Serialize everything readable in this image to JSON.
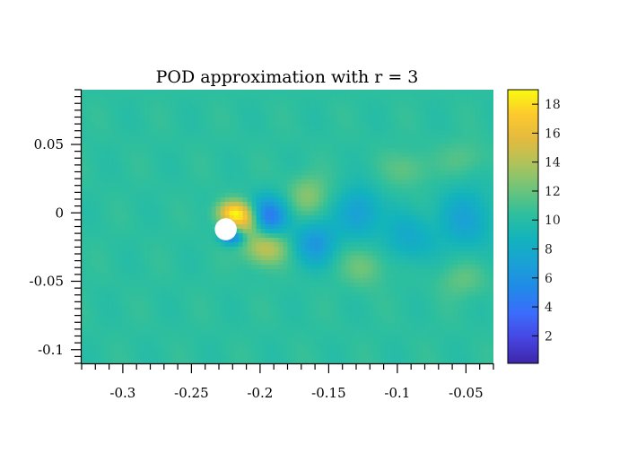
{
  "chart_data": {
    "type": "heatmap",
    "title": "POD approximation with r = 3",
    "xlabel": "",
    "ylabel": "",
    "xlim": [
      -0.33,
      -0.03
    ],
    "ylim": [
      -0.11,
      0.09
    ],
    "x_ticks": [
      -0.3,
      -0.25,
      -0.2,
      -0.15,
      -0.1,
      -0.05
    ],
    "x_tick_labels": [
      "-0.3",
      "-0.25",
      "-0.2",
      "-0.15",
      "-0.1",
      "-0.05"
    ],
    "y_ticks": [
      0.05,
      0,
      -0.05,
      -0.1
    ],
    "y_tick_labels": [
      "0.05",
      "0",
      "-0.05",
      "-0.1"
    ],
    "background_value": 10.3,
    "cylinder": {
      "x": -0.225,
      "y": -0.012,
      "radius": 0.008
    },
    "features": [
      {
        "x": -0.22,
        "y": 0.0,
        "amplitude": 7.0,
        "sx": 0.008,
        "sy": 0.006
      },
      {
        "x": -0.209,
        "y": -0.006,
        "amplitude": 5.0,
        "sx": 0.008,
        "sy": 0.008
      },
      {
        "x": -0.22,
        "y": -0.018,
        "amplitude": -6.0,
        "sx": 0.006,
        "sy": 0.004
      },
      {
        "x": -0.195,
        "y": -0.003,
        "amplitude": -6.5,
        "sx": 0.01,
        "sy": 0.01
      },
      {
        "x": -0.196,
        "y": -0.025,
        "amplitude": 4.5,
        "sx": 0.011,
        "sy": 0.009
      },
      {
        "x": -0.165,
        "y": 0.013,
        "amplitude": 2.5,
        "sx": 0.01,
        "sy": 0.01
      },
      {
        "x": -0.16,
        "y": -0.022,
        "amplitude": -4.0,
        "sx": 0.011,
        "sy": 0.011
      },
      {
        "x": -0.128,
        "y": 0.0,
        "amplitude": -3.5,
        "sx": 0.011,
        "sy": 0.013
      },
      {
        "x": -0.124,
        "y": -0.039,
        "amplitude": 2.0,
        "sx": 0.011,
        "sy": 0.01
      },
      {
        "x": -0.092,
        "y": 0.032,
        "amplitude": 1.5,
        "sx": 0.012,
        "sy": 0.009
      },
      {
        "x": -0.092,
        "y": -0.018,
        "amplitude": -2.5,
        "sx": 0.013,
        "sy": 0.013
      },
      {
        "x": -0.05,
        "y": -0.005,
        "amplitude": -3.0,
        "sx": 0.014,
        "sy": 0.016
      },
      {
        "x": -0.053,
        "y": -0.049,
        "amplitude": 1.5,
        "sx": 0.012,
        "sy": 0.009
      },
      {
        "x": -0.05,
        "y": 0.04,
        "amplitude": 1.2,
        "sx": 0.012,
        "sy": 0.009
      }
    ],
    "colorbar": {
      "min": 0.1,
      "max": 19.0,
      "ticks": [
        2,
        4,
        6,
        8,
        10,
        12,
        14,
        16,
        18
      ],
      "tick_labels": [
        "2",
        "4",
        "6",
        "8",
        "10",
        "12",
        "14",
        "16",
        "18"
      ],
      "colormap": [
        "#3e26a8",
        "#4745e3",
        "#3b6cfc",
        "#2189e8",
        "#1aa1d5",
        "#12b3bd",
        "#2ebf9d",
        "#6dc47a",
        "#adc35b",
        "#e3ba3f",
        "#fdc92d",
        "#f9fb0e"
      ]
    }
  }
}
